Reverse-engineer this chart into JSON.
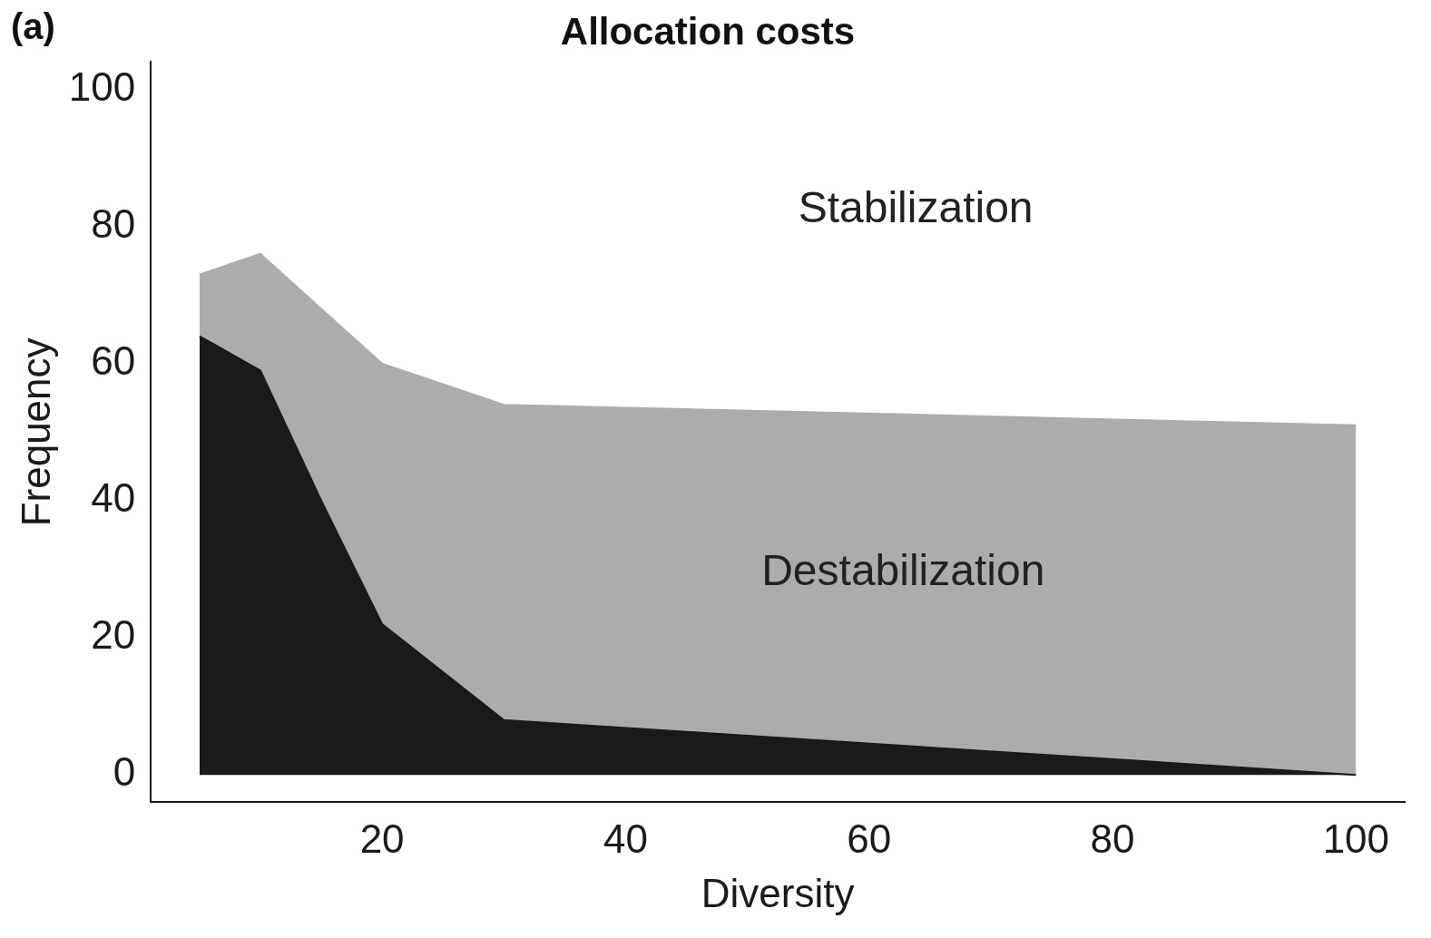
{
  "chart_data": {
    "type": "area",
    "title": "Allocation costs",
    "xlabel": "Diversity",
    "ylabel": "Frequency",
    "x": [
      5,
      10,
      15,
      20,
      30,
      100
    ],
    "stacked": true,
    "series": [
      {
        "color": "#1a1a1a",
        "values": [
          64,
          59,
          40,
          22,
          8,
          0
        ]
      },
      {
        "color": "#abadac",
        "values": [
          9,
          17,
          28,
          38,
          46,
          51
        ]
      }
    ],
    "xlim": [
      1,
      104
    ],
    "xticks": [
      20,
      40,
      60,
      80,
      100
    ],
    "ylim": [
      -4,
      104
    ],
    "yticks": [
      0,
      20,
      40,
      60,
      80,
      100
    ],
    "grid": false,
    "legend": false,
    "annotations": [
      "(a)",
      "Stabilization",
      "Destabilization"
    ]
  }
}
